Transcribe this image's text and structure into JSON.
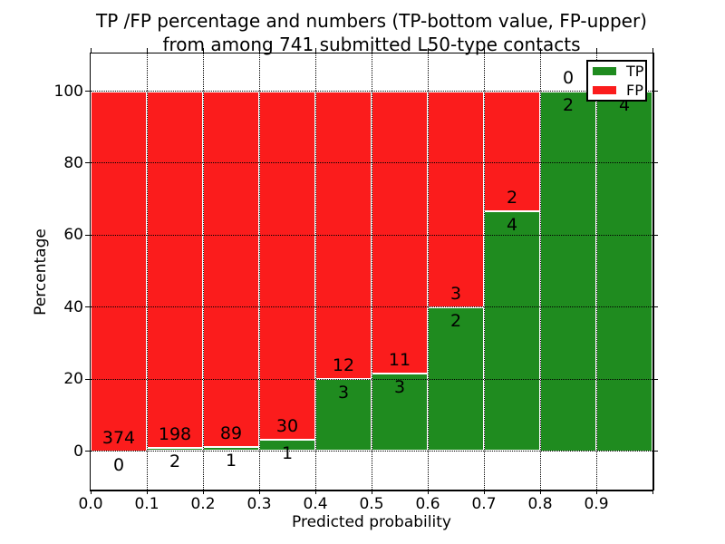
{
  "chart_data": {
    "type": "bar",
    "stacked": true,
    "title": "TP /FP percentage and numbers (TP-bottom value, FP-upper) from among 741 submitted L50-type contacts",
    "title_lines": [
      "TP /FP percentage and numbers (TP-bottom value, FP-upper)",
      "from among 741 submitted L50-type contacts"
    ],
    "xlabel": "Predicted probability",
    "ylabel": "Percentage",
    "total_submitted": 741,
    "categories": [
      "0.0-0.1",
      "0.1-0.2",
      "0.2-0.3",
      "0.3-0.4",
      "0.4-0.5",
      "0.5-0.6",
      "0.6-0.7",
      "0.7-0.8",
      "0.8-0.9",
      "0.9-1.0"
    ],
    "series": [
      {
        "name": "TP",
        "color": "#1f8b1f",
        "counts": [
          0,
          2,
          1,
          1,
          3,
          3,
          2,
          4,
          2,
          4
        ]
      },
      {
        "name": "FP",
        "color": "#fb1c1c",
        "counts": [
          374,
          198,
          89,
          30,
          12,
          11,
          3,
          2,
          0,
          0
        ]
      }
    ],
    "values_note": "bars show percentage split TP/(TP+FP) per bin; numbers are raw counts (TP below boundary, FP above)",
    "tp_percent_per_bin": [
      0,
      1.0,
      1.1,
      3.2,
      20.0,
      21.4,
      40.0,
      66.7,
      100.0,
      100.0
    ],
    "x_tick_labels": [
      "0.0",
      "0.1",
      "0.2",
      "0.3",
      "0.4",
      "0.5",
      "0.6",
      "0.7",
      "0.8",
      "0.9"
    ],
    "y_ticks": [
      0,
      20,
      40,
      60,
      80,
      100
    ],
    "xlim": [
      0.0,
      1.0
    ],
    "ylim": [
      -11,
      110
    ],
    "grid": "dotted black, drawn over bars",
    "bar_edge_color": "#ffffff",
    "legend_position": "upper right",
    "legend": [
      {
        "label": "TP",
        "color": "#1f8b1f"
      },
      {
        "label": "FP",
        "color": "#fb1c1c"
      }
    ]
  }
}
